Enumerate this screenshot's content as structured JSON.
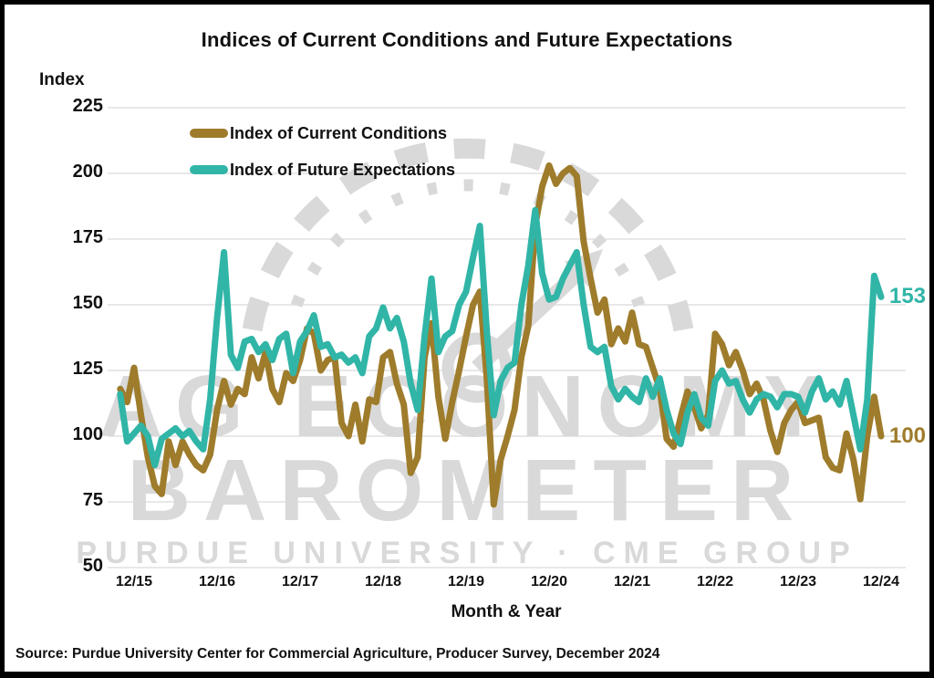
{
  "title": "Indices of Current Conditions and Future Expectations",
  "y_axis": {
    "label": "Index",
    "ticks": [
      225,
      200,
      175,
      150,
      125,
      100,
      75,
      50
    ],
    "min": 50,
    "max": 225
  },
  "x_axis": {
    "label": "Month & Year",
    "tick_labels": [
      "12/15",
      "12/16",
      "12/17",
      "12/18",
      "12/19",
      "12/20",
      "12/21",
      "12/22",
      "12/23",
      "12/24"
    ]
  },
  "legend": [
    {
      "label": "Index of Current Conditions",
      "color": "#9E7C2B"
    },
    {
      "label": "Index of Future Expectations",
      "color": "#30B5A7"
    }
  ],
  "end_labels": [
    {
      "text": "153",
      "color": "#30B5A7"
    },
    {
      "text": "100",
      "color": "#9E7C2B"
    }
  ],
  "source": "Source: Purdue University Center for Commercial Agriculture, Producer Survey, December 2024",
  "watermark": {
    "line1": "AG ECONOMY",
    "line2": "BAROMETER",
    "line3": "PURDUE UNIVERSITY  ·  CME GROUP",
    "color": "#d9d9d9"
  },
  "chart_data": {
    "type": "line",
    "title": "Indices of Current Conditions and Future Expectations",
    "xlabel": "Month & Year",
    "ylabel": "Index",
    "ylim": [
      50,
      225
    ],
    "x_start": "Oct 2015",
    "x_end": "Dec 2024",
    "interval": "monthly",
    "grid": "horizontal",
    "legend_position": "top-left-inside",
    "x_tick_labels": [
      "12/15",
      "12/16",
      "12/17",
      "12/18",
      "12/19",
      "12/20",
      "12/21",
      "12/22",
      "12/23",
      "12/24"
    ],
    "series": [
      {
        "name": "Index of Current Conditions",
        "color": "#9E7C2B",
        "last_value_label": "100",
        "values": [
          118,
          113,
          126,
          108,
          92,
          81,
          78,
          98,
          89,
          98,
          93,
          89,
          87,
          93,
          110,
          121,
          112,
          118,
          116,
          130,
          122,
          132,
          118,
          113,
          124,
          121,
          129,
          141,
          139,
          125,
          129,
          130,
          105,
          100,
          112,
          98,
          114,
          113,
          130,
          132,
          120,
          112,
          86,
          92,
          130,
          143,
          115,
          99,
          113,
          125,
          138,
          150,
          155,
          122,
          74,
          91,
          100,
          110,
          130,
          142,
          180,
          195,
          203,
          196,
          200,
          202,
          199,
          174,
          160,
          147,
          152,
          135,
          141,
          136,
          147,
          135,
          134,
          126,
          118,
          99,
          96,
          107,
          117,
          111,
          103,
          108,
          139,
          135,
          127,
          132,
          125,
          116,
          120,
          114,
          102,
          94,
          105,
          110,
          113,
          105,
          106,
          107,
          92,
          88,
          87,
          101,
          91,
          76,
          100,
          115,
          100
        ]
      },
      {
        "name": "Index of Future Expectations",
        "color": "#30B5A7",
        "last_value_label": "153",
        "values": [
          116,
          98,
          101,
          104,
          100,
          89,
          99,
          101,
          103,
          100,
          102,
          98,
          95,
          114,
          145,
          170,
          131,
          126,
          136,
          137,
          132,
          135,
          129,
          137,
          139,
          124,
          136,
          140,
          146,
          134,
          135,
          130,
          131,
          128,
          130,
          124,
          138,
          141,
          149,
          141,
          145,
          136,
          120,
          110,
          138,
          160,
          132,
          138,
          140,
          150,
          155,
          168,
          180,
          140,
          108,
          121,
          126,
          128,
          150,
          165,
          186,
          162,
          152,
          153,
          160,
          165,
          170,
          150,
          134,
          132,
          134,
          119,
          114,
          118,
          115,
          113,
          122,
          115,
          122,
          110,
          101,
          97,
          109,
          116,
          107,
          104,
          121,
          125,
          120,
          121,
          114,
          109,
          114,
          116,
          115,
          111,
          116,
          116,
          115,
          109,
          117,
          122,
          114,
          117,
          112,
          121,
          108,
          95,
          114,
          161,
          153
        ]
      }
    ]
  }
}
